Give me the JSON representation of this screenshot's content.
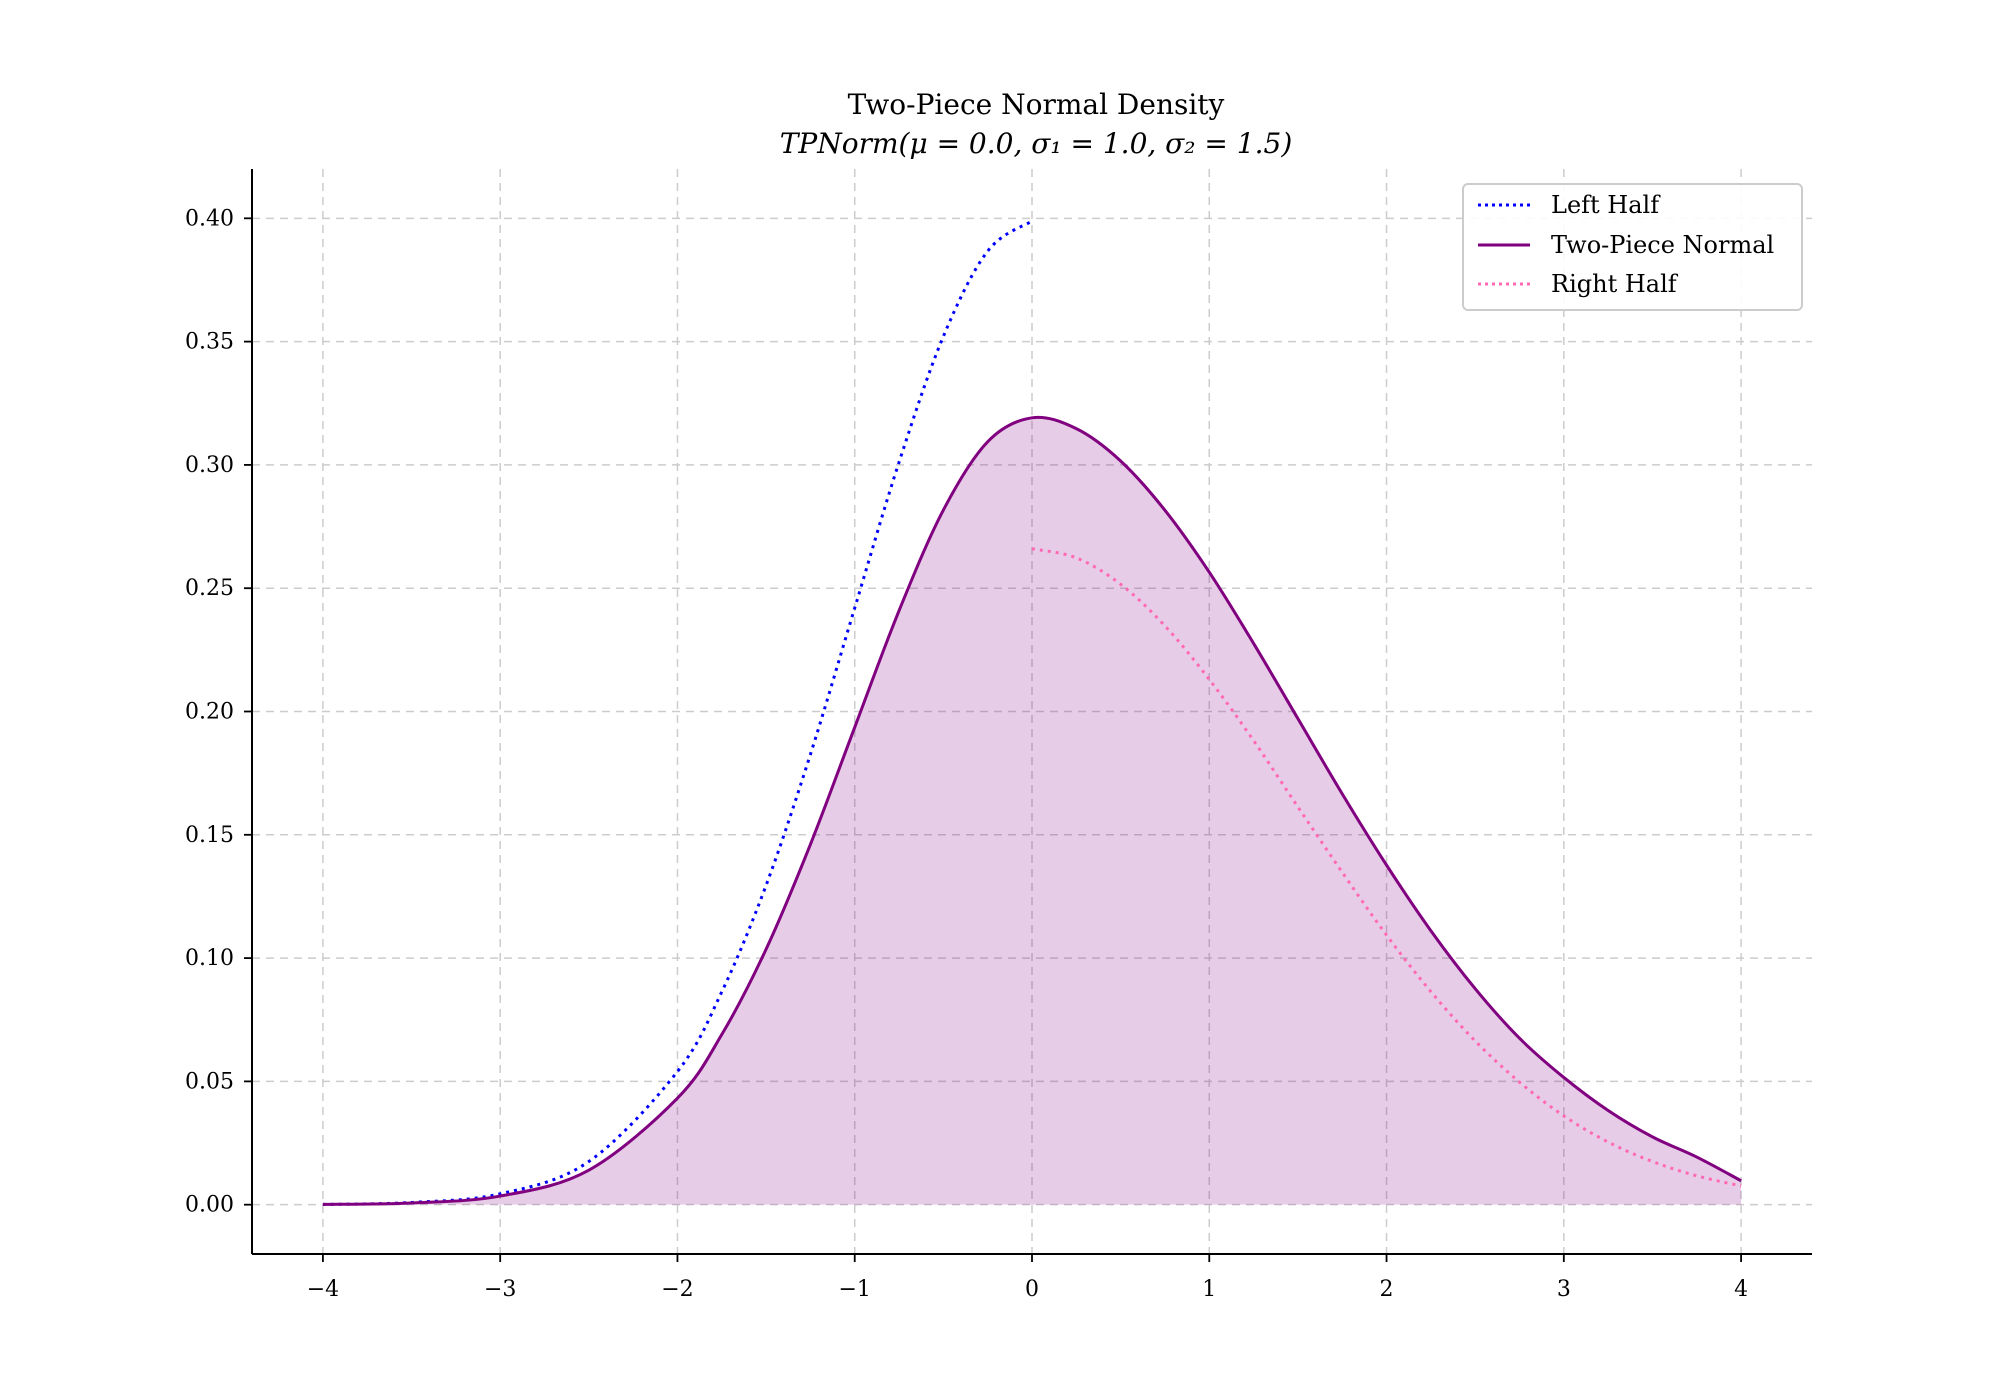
{
  "colors": {
    "left_half": "#0000ff",
    "two_piece": "#800080",
    "right_half": "#ff69b4",
    "fill": "#800080",
    "grid": "#cccccc"
  },
  "chart_data": {
    "type": "line",
    "title": "Two-Piece Normal Density",
    "subtitle": "TPNorm(μ = 0.0, σ₁ = 1.0, σ₂ = 1.5)",
    "xlabel": "",
    "ylabel": "",
    "xlim": [
      -4.4,
      4.4
    ],
    "ylim": [
      -0.02,
      0.42
    ],
    "xticks": [
      -4,
      -3,
      -2,
      -1,
      0,
      1,
      2,
      3,
      4
    ],
    "xtick_labels": [
      "−4",
      "−3",
      "−2",
      "−1",
      "0",
      "1",
      "2",
      "3",
      "4"
    ],
    "yticks": [
      0.0,
      0.05,
      0.1,
      0.15,
      0.2,
      0.25,
      0.3,
      0.35,
      0.4
    ],
    "ytick_labels": [
      "0.00",
      "0.05",
      "0.10",
      "0.15",
      "0.20",
      "0.25",
      "0.30",
      "0.35",
      "0.40"
    ],
    "grid": true,
    "legend_position": "top-right",
    "series": [
      {
        "name": "Left Half",
        "style": "dotted",
        "color": "#0000ff",
        "x": [
          -4.0,
          -3.5,
          -3.0,
          -2.5,
          -2.0,
          -1.75,
          -1.5,
          -1.25,
          -1.0,
          -0.75,
          -0.5,
          -0.25,
          0.0
        ],
        "y": [
          0.0001,
          0.0009,
          0.0044,
          0.0175,
          0.054,
          0.0863,
          0.1295,
          0.1826,
          0.242,
          0.3011,
          0.3521,
          0.3867,
          0.3989
        ]
      },
      {
        "name": "Two-Piece Normal",
        "style": "solid",
        "color": "#800080",
        "fill": true,
        "x": [
          -4.0,
          -3.5,
          -3.0,
          -2.5,
          -2.0,
          -1.75,
          -1.5,
          -1.25,
          -1.0,
          -0.75,
          -0.5,
          -0.25,
          0.0,
          0.25,
          0.5,
          0.75,
          1.0,
          1.25,
          1.5,
          1.75,
          2.0,
          2.25,
          2.5,
          2.75,
          3.0,
          3.25,
          3.5,
          3.75,
          4.0
        ],
        "y": [
          0.0001,
          0.0007,
          0.0035,
          0.014,
          0.0432,
          0.069,
          0.1036,
          0.1461,
          0.1936,
          0.2409,
          0.2817,
          0.3094,
          0.3191,
          0.3147,
          0.3016,
          0.2816,
          0.2565,
          0.2276,
          0.1971,
          0.1666,
          0.1377,
          0.1111,
          0.0876,
          0.0675,
          0.0516,
          0.0382,
          0.0275,
          0.0193,
          0.0097
        ]
      },
      {
        "name": "Right Half",
        "style": "dotted",
        "color": "#ff69b4",
        "x": [
          0.0,
          0.25,
          0.5,
          0.75,
          1.0,
          1.25,
          1.5,
          1.75,
          2.0,
          2.25,
          2.5,
          2.75,
          3.0,
          3.25,
          3.5,
          3.75,
          4.0
        ],
        "y": [
          0.266,
          0.2623,
          0.2516,
          0.2347,
          0.213,
          0.1882,
          0.1613,
          0.1348,
          0.1093,
          0.0864,
          0.0664,
          0.0497,
          0.036,
          0.0254,
          0.0175,
          0.0117,
          0.0076
        ]
      }
    ]
  }
}
